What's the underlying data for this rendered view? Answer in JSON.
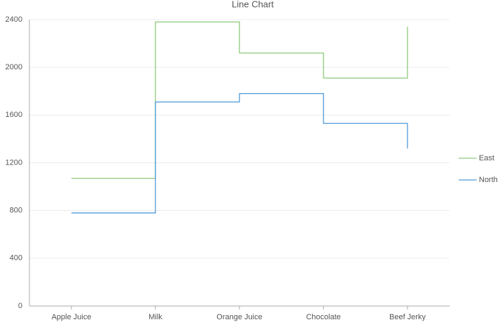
{
  "chart_data": {
    "type": "line",
    "step": "after",
    "title": "Line Chart",
    "categories": [
      "Apple Juice",
      "Milk",
      "Orange Juice",
      "Chocolate",
      "Beef Jerky"
    ],
    "series": [
      {
        "name": "East",
        "color": "#8cc97a",
        "values": [
          1070,
          2380,
          2120,
          1910,
          2340
        ]
      },
      {
        "name": "North",
        "color": "#4f9ad8",
        "values": [
          780,
          1710,
          1780,
          1530,
          1320
        ]
      }
    ],
    "ylim": [
      0,
      2400
    ],
    "yticks": [
      0,
      400,
      800,
      1200,
      1600,
      2000,
      2400
    ],
    "grid": true,
    "legend": "right"
  }
}
